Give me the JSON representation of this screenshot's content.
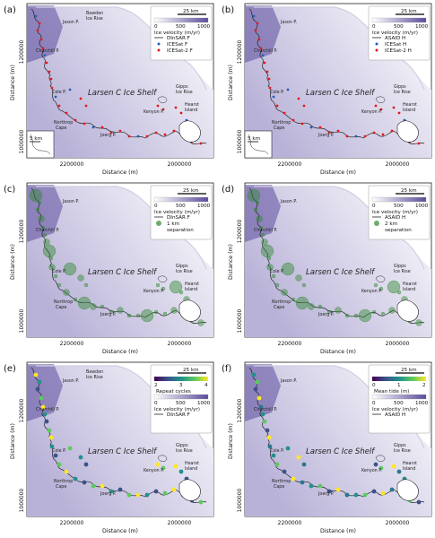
{
  "figure": {
    "x_axis_label": "Distance (m)",
    "y_axis_label": "Distance (m)",
    "x_ticks": [
      "2200000",
      "2000000"
    ],
    "y_ticks": [
      "1200000",
      "1000000"
    ],
    "shelf_label": "Larsen C Ice Shelf",
    "scale_bar_label": "25 km",
    "inset_scale_label": "5 km",
    "velocity_colorbar": {
      "ticks": [
        "0",
        "500",
        "1000"
      ],
      "label": "Ice velocity (m/yr)"
    },
    "colors": {
      "ice_light": "#ffffff",
      "ice_dark": "#5d4c9c",
      "red": "#e41a1c",
      "blue": "#1f5fbf",
      "green": "#2f8a2f",
      "olive": "#8c8c3a"
    },
    "places": {
      "jason": "Jason P.",
      "bawden": "Bawden",
      "bawden2": "Ice Rise",
      "churchill": "Churchill P.",
      "cole": "Cole P.",
      "gipps": "Gipps",
      "gipps2": "Ice Rise",
      "hearst": "Hearst",
      "hearst2": "Island",
      "kenyon": "Kenyon P.",
      "northrop": "Northrop",
      "northrop2": "Cape",
      "joerg": "Joerg P."
    }
  },
  "panels": [
    {
      "id": "a",
      "label": "(a)",
      "legend": [
        {
          "symbol": "line",
          "text": "DInSAR F"
        },
        {
          "symbol": "blue-dot",
          "text": "ICESat F"
        },
        {
          "symbol": "red-dot",
          "text": "ICESat-2 F"
        }
      ]
    },
    {
      "id": "b",
      "label": "(b)",
      "legend": [
        {
          "symbol": "line",
          "text": "ASAID H"
        },
        {
          "symbol": "blue-dot",
          "text": "ICESat H"
        },
        {
          "symbol": "red-dot",
          "text": "ICESat-2 H"
        }
      ]
    },
    {
      "id": "c",
      "label": "(c)",
      "legend": [
        {
          "symbol": "line",
          "text": "DInSAR F"
        },
        {
          "symbol": "green-dot",
          "text": "1 km"
        },
        {
          "symbol": "none",
          "text": "separation"
        }
      ]
    },
    {
      "id": "d",
      "label": "(d)",
      "legend": [
        {
          "symbol": "line",
          "text": "ASAID H"
        },
        {
          "symbol": "green-dot",
          "text": "2 km"
        },
        {
          "symbol": "none",
          "text": "separation"
        }
      ]
    },
    {
      "id": "e",
      "label": "(e)",
      "legend": [
        {
          "symbol": "line",
          "text": "DInSAR F"
        }
      ],
      "extra_colorbar": {
        "ticks": [
          "2",
          "3",
          "4"
        ],
        "label": "Repeat cycles"
      }
    },
    {
      "id": "f",
      "label": "(f)",
      "legend": [
        {
          "symbol": "line",
          "text": "ASAID H"
        }
      ],
      "extra_colorbar": {
        "ticks": [
          "0",
          "1",
          "2"
        ],
        "label": "Mean tide (m)"
      }
    }
  ]
}
